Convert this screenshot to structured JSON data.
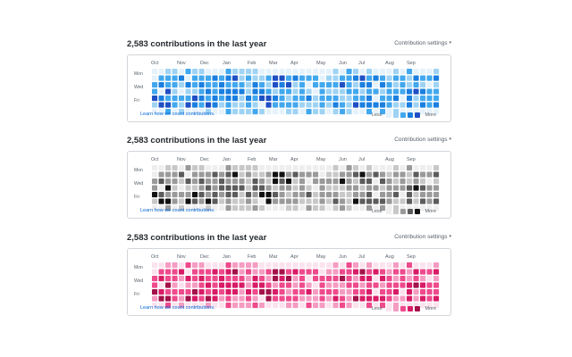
{
  "graphs": [
    {
      "title": "2,583 contributions in the last year",
      "settings_label": "Contribution settings",
      "learn_link": "Learn how we count contributions.",
      "legend_less": "Less",
      "legend_more": "More",
      "palette": [
        "#e6f2fb",
        "#9fd3f4",
        "#42a8ee",
        "#1a7fe0",
        "#1f4fc4"
      ],
      "theme": "blue"
    },
    {
      "title": "2,583 contributions in the last year",
      "settings_label": "Contribution settings",
      "learn_link": "Learn how we count contributions.",
      "legend_less": "Less",
      "legend_more": "More",
      "palette": [
        "#eeeeee",
        "#c8c8c8",
        "#9a9a9a",
        "#5c5c5c",
        "#111111"
      ],
      "theme": "gray"
    },
    {
      "title": "2,583 contributions in the last year",
      "settings_label": "Contribution settings",
      "learn_link": "Learn how we count contributions.",
      "legend_less": "Less",
      "legend_more": "More",
      "palette": [
        "#fbe3ee",
        "#f59cc2",
        "#ee4a8c",
        "#d81b66",
        "#a3124a"
      ],
      "theme": "pink"
    }
  ],
  "months": [
    "Oct",
    "Nov",
    "Dec",
    "Jan",
    "Feb",
    "Mar",
    "Apr",
    "May",
    "Jun",
    "Jul",
    "Aug",
    "Sep"
  ],
  "weekdays": [
    "Mon",
    "Wed",
    "Fri"
  ]
}
